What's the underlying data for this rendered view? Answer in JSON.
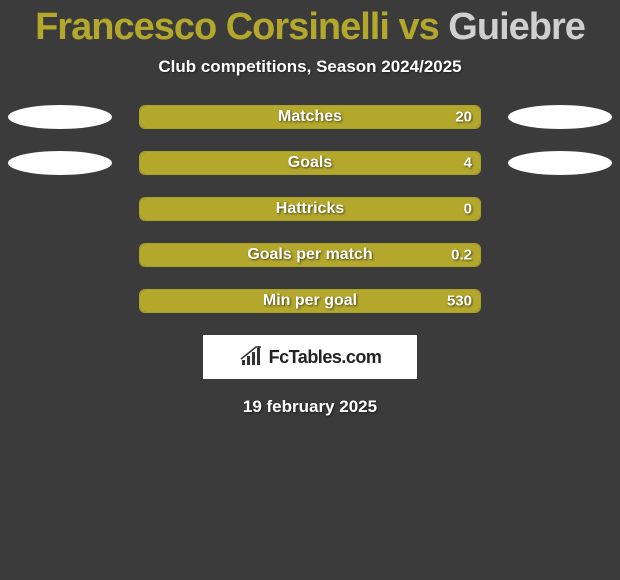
{
  "title": {
    "player1": "Francesco Corsinelli",
    "vs": " vs ",
    "player2": "Guiebre",
    "color1": "#b4a82c",
    "color2": "#cfcfcf"
  },
  "subtitle": "Club competitions, Season 2024/2025",
  "stats": [
    {
      "label": "Matches",
      "value": "20",
      "fill_pct": 100,
      "show_left_oval": true,
      "show_right_oval": true
    },
    {
      "label": "Goals",
      "value": "4",
      "fill_pct": 100,
      "show_left_oval": true,
      "show_right_oval": true
    },
    {
      "label": "Hattricks",
      "value": "0",
      "fill_pct": 100,
      "show_left_oval": false,
      "show_right_oval": false
    },
    {
      "label": "Goals per match",
      "value": "0.2",
      "fill_pct": 100,
      "show_left_oval": false,
      "show_right_oval": false
    },
    {
      "label": "Min per goal",
      "value": "530",
      "fill_pct": 100,
      "show_left_oval": false,
      "show_right_oval": false
    }
  ],
  "bar": {
    "fill_color": "#b4a82c",
    "border_color": "#aaa12a",
    "text_color": "#ffffff"
  },
  "oval_color": "#ffffff",
  "logo": {
    "text": "FcTables.com",
    "icon_color": "#333333"
  },
  "date": "19 february 2025",
  "background_color": "#3b3b3b"
}
